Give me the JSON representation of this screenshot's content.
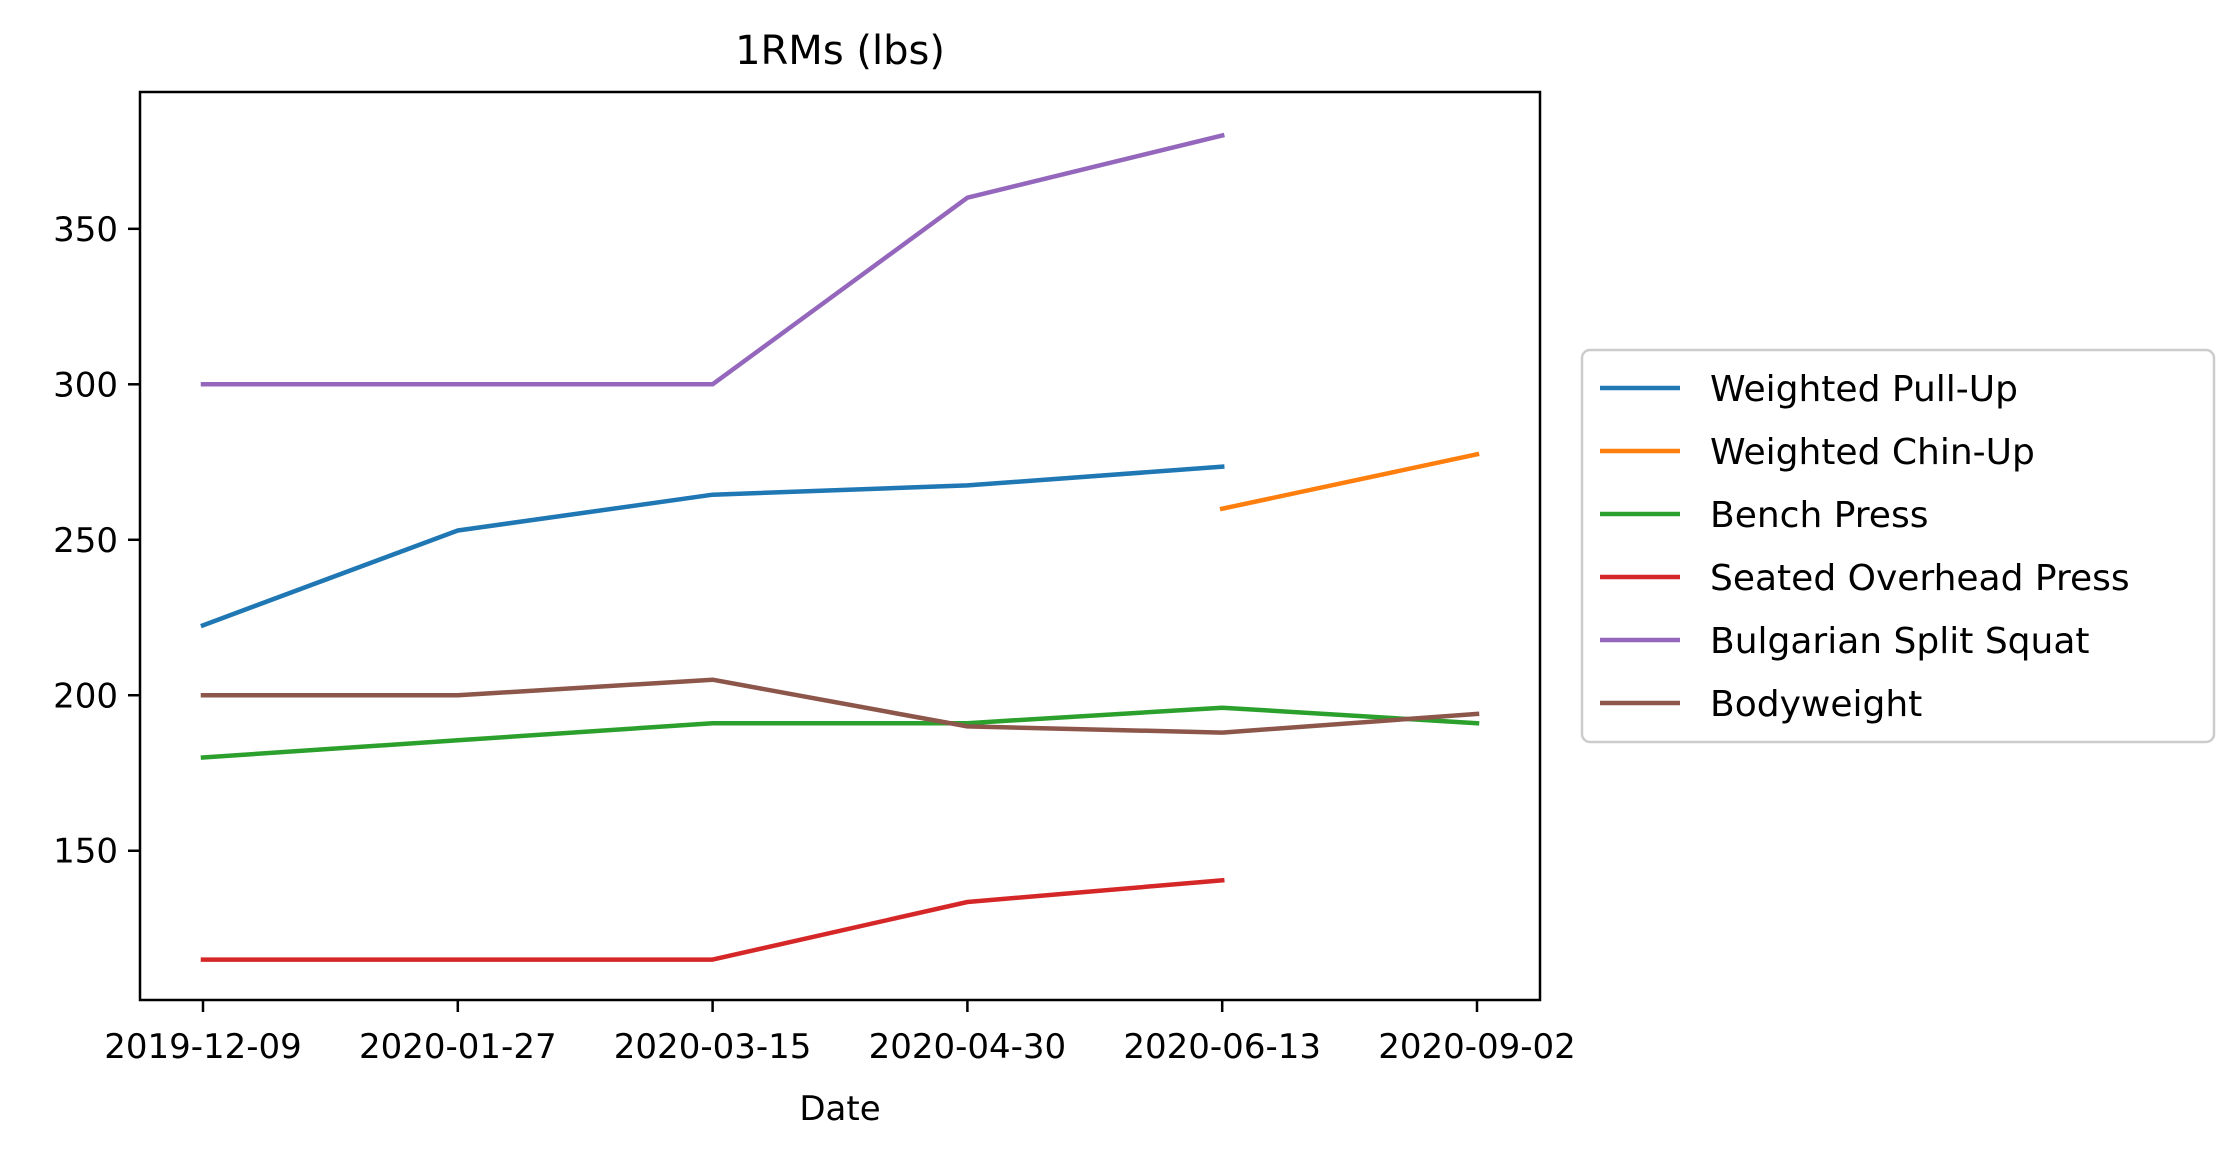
{
  "chart_data": {
    "type": "line",
    "title": "1RMs (lbs)",
    "xlabel": "Date",
    "ylabel": "",
    "categories": [
      "2019-12-09",
      "2020-01-27",
      "2020-03-15",
      "2020-04-30",
      "2020-06-13",
      "2020-09-02"
    ],
    "ylim": [
      102,
      394
    ],
    "yticks": [
      150,
      200,
      250,
      300,
      350
    ],
    "grid": false,
    "legend_position": "right-outside",
    "series": [
      {
        "name": "Weighted Pull-Up",
        "color": "#1f77b4",
        "values": [
          222.5,
          253,
          264.5,
          267.5,
          273.5,
          null
        ]
      },
      {
        "name": "Weighted Chin-Up",
        "color": "#ff7f0e",
        "values": [
          null,
          null,
          null,
          null,
          260,
          277.5
        ]
      },
      {
        "name": "Bench Press",
        "color": "#2ca02c",
        "values": [
          180,
          185.5,
          191,
          191,
          196,
          191
        ]
      },
      {
        "name": "Seated Overhead Press",
        "color": "#d62728",
        "values": [
          115,
          115,
          115,
          133.5,
          140.5,
          null
        ]
      },
      {
        "name": "Bulgarian Split Squat",
        "color": "#9467bd",
        "values": [
          300,
          300,
          300,
          360,
          380,
          null
        ]
      },
      {
        "name": "Bodyweight",
        "color": "#8c564b",
        "values": [
          200,
          200,
          205,
          190,
          188,
          194
        ]
      }
    ]
  }
}
